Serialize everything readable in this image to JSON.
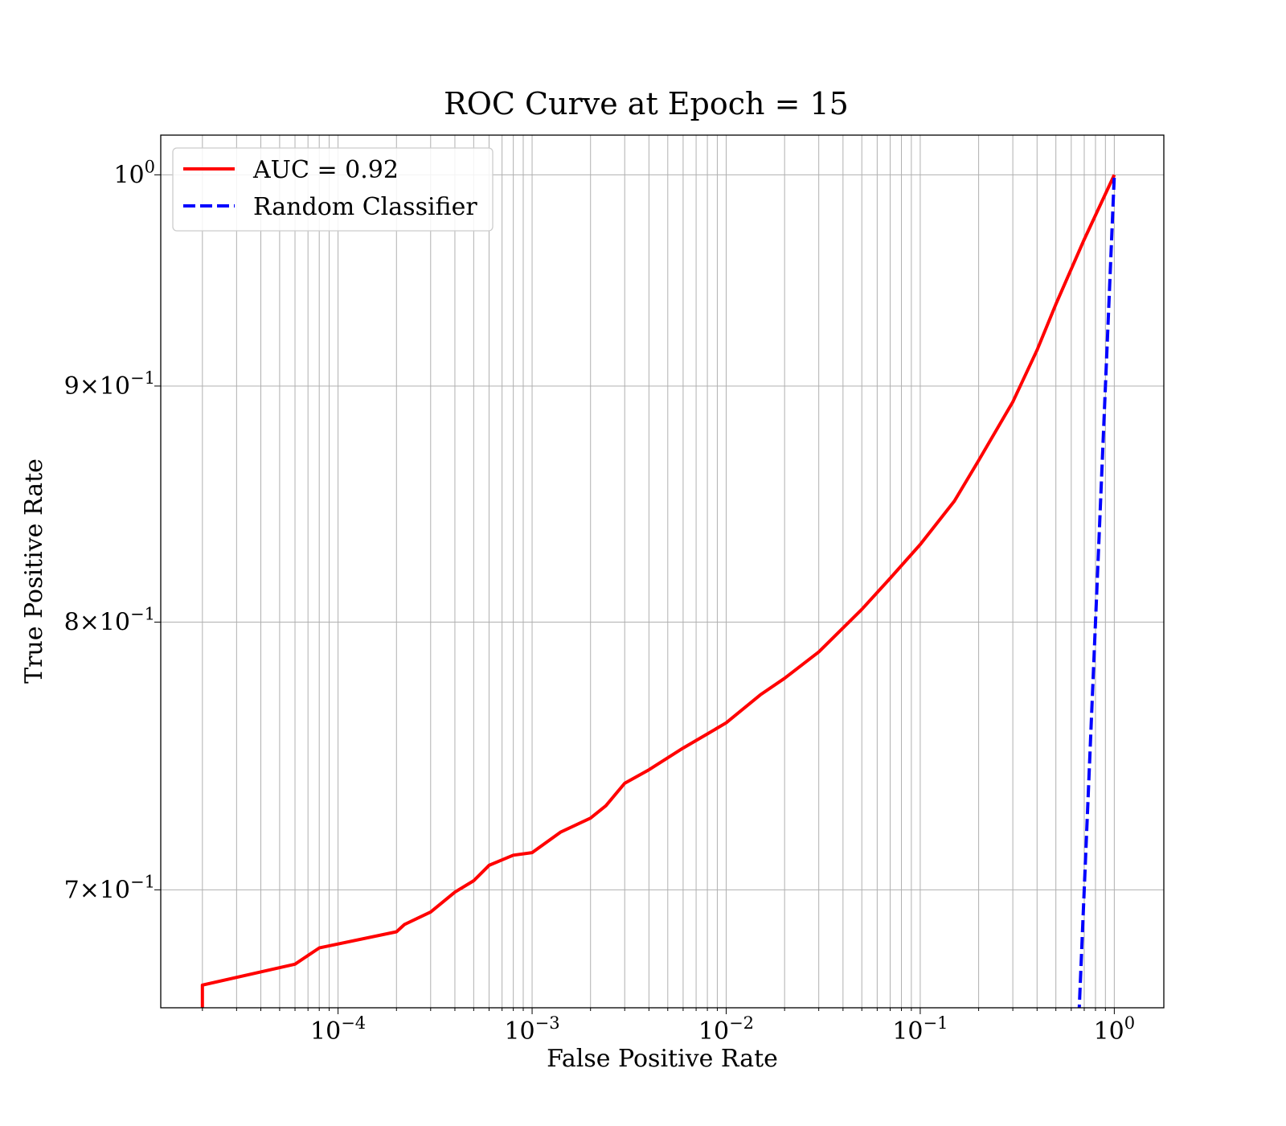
{
  "chart_data": {
    "type": "line",
    "title": "ROC Curve at Epoch = 15",
    "xlabel": "False Positive Rate",
    "ylabel": "True Positive Rate",
    "xscale": "log",
    "yscale": "log",
    "xlim": [
      1.22e-05,
      1.8
    ],
    "ylim": [
      0.66,
      1.02
    ],
    "grid": "both (major and minor)",
    "legend_position": "top-left",
    "x_ticks": [
      {
        "value": 0.0001,
        "base": "10",
        "exp": "−4"
      },
      {
        "value": 0.001,
        "base": "10",
        "exp": "−3"
      },
      {
        "value": 0.01,
        "base": "10",
        "exp": "−2"
      },
      {
        "value": 0.1,
        "base": "10",
        "exp": "−1"
      },
      {
        "value": 1,
        "base": "10",
        "exp": "0"
      }
    ],
    "y_ticks": [
      {
        "value": 0.7,
        "base": "7×10",
        "exp": "−1"
      },
      {
        "value": 0.8,
        "base": "8×10",
        "exp": "−1"
      },
      {
        "value": 0.9,
        "base": "9×10",
        "exp": "−1"
      },
      {
        "value": 1.0,
        "base": "10",
        "exp": "0"
      }
    ],
    "series": [
      {
        "name": "AUC = 0.92",
        "color": "#ff0000",
        "style": "solid",
        "x": [
          2e-05,
          2e-05,
          6e-05,
          8e-05,
          0.0002,
          0.00022,
          0.0003,
          0.0004,
          0.0005,
          0.0006,
          0.0008,
          0.001,
          0.0014,
          0.002,
          0.0024,
          0.003,
          0.004,
          0.006,
          0.008,
          0.01,
          0.015,
          0.02,
          0.03,
          0.05,
          0.07,
          0.1,
          0.15,
          0.2,
          0.3,
          0.4,
          0.5,
          0.7,
          1.0
        ],
        "y": [
          0.655,
          0.6675,
          0.6745,
          0.68,
          0.6855,
          0.688,
          0.6923,
          0.6992,
          0.7032,
          0.7086,
          0.7122,
          0.7131,
          0.7204,
          0.7255,
          0.73,
          0.7382,
          0.7432,
          0.7513,
          0.7566,
          0.7608,
          0.7715,
          0.7779,
          0.7882,
          0.8051,
          0.8177,
          0.8316,
          0.8498,
          0.8672,
          0.8929,
          0.9163,
          0.9375,
          0.9683,
          1.0
        ]
      },
      {
        "name": "Random Classifier",
        "color": "#0000ff",
        "style": "dashed",
        "x": [
          0.63,
          1.0
        ],
        "y": [
          0.63,
          1.0
        ]
      }
    ]
  }
}
